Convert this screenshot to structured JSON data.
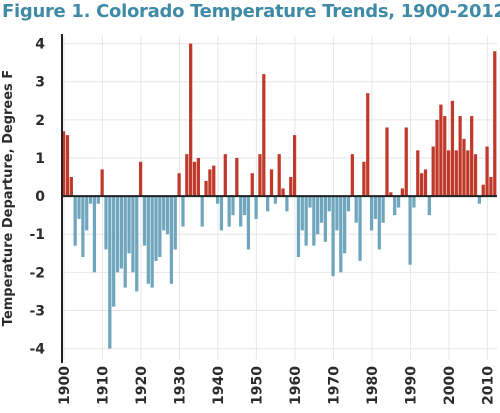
{
  "title": "Figure 1. Colorado Temperature Trends, 1900-2012",
  "colors": {
    "warm": "#c0392b",
    "cool": "#6fa6bd",
    "grid": "#e6e6e6",
    "axis": "#222222"
  },
  "chart_data": {
    "type": "bar",
    "title": "Figure 1. Colorado Temperature Trends, 1900-2012",
    "xlabel": "",
    "ylabel": "Temperature Departure, Degrees F",
    "ylim": [
      -4.3,
      4.2
    ],
    "yticks": [
      4,
      3,
      2,
      1,
      0,
      -1,
      -2,
      -3,
      -4
    ],
    "xticks": [
      1900,
      1910,
      1920,
      1930,
      1940,
      1950,
      1960,
      1970,
      1980,
      1990,
      2000,
      2010
    ],
    "grid": true,
    "x": [
      1900,
      1901,
      1902,
      1903,
      1904,
      1905,
      1906,
      1907,
      1908,
      1909,
      1910,
      1911,
      1912,
      1913,
      1914,
      1915,
      1916,
      1917,
      1918,
      1919,
      1920,
      1921,
      1922,
      1923,
      1924,
      1925,
      1926,
      1927,
      1928,
      1929,
      1930,
      1931,
      1932,
      1933,
      1934,
      1935,
      1936,
      1937,
      1938,
      1939,
      1940,
      1941,
      1942,
      1943,
      1944,
      1945,
      1946,
      1947,
      1948,
      1949,
      1950,
      1951,
      1952,
      1953,
      1954,
      1955,
      1956,
      1957,
      1958,
      1959,
      1960,
      1961,
      1962,
      1963,
      1964,
      1965,
      1966,
      1967,
      1968,
      1969,
      1970,
      1971,
      1972,
      1973,
      1974,
      1975,
      1976,
      1977,
      1978,
      1979,
      1980,
      1981,
      1982,
      1983,
      1984,
      1985,
      1986,
      1987,
      1988,
      1989,
      1990,
      1991,
      1992,
      1993,
      1994,
      1995,
      1996,
      1997,
      1998,
      1999,
      2000,
      2001,
      2002,
      2003,
      2004,
      2005,
      2006,
      2007,
      2008,
      2009,
      2010,
      2011,
      2012
    ],
    "values": [
      1.7,
      1.6,
      0.5,
      -1.3,
      -0.6,
      -1.6,
      -0.9,
      -0.2,
      -2.0,
      -0.2,
      0.7,
      -1.4,
      -4.0,
      -2.9,
      -2.0,
      -1.9,
      -2.4,
      -1.5,
      -2.0,
      -2.5,
      0.9,
      -1.3,
      -2.3,
      -2.4,
      -1.7,
      -1.6,
      -0.9,
      -1.0,
      -2.3,
      -1.4,
      0.6,
      -0.8,
      1.1,
      4.0,
      0.9,
      1.0,
      -0.8,
      0.4,
      0.7,
      0.8,
      -0.2,
      -0.9,
      1.1,
      -0.8,
      -0.5,
      1.0,
      -0.8,
      -0.5,
      -1.4,
      0.6,
      -0.6,
      1.1,
      3.2,
      -0.4,
      0.7,
      -0.2,
      1.1,
      0.2,
      -0.4,
      0.5,
      1.6,
      -1.6,
      -0.9,
      -1.3,
      -0.3,
      -1.3,
      -1.0,
      -0.7,
      -1.2,
      -0.4,
      -2.1,
      -0.9,
      -2.0,
      -1.5,
      -0.4,
      1.1,
      -0.7,
      -1.7,
      0.9,
      2.7,
      -0.9,
      -0.6,
      -1.4,
      -0.7,
      1.8,
      0.1,
      -0.5,
      -0.3,
      0.2,
      1.8,
      -1.8,
      -0.3,
      1.2,
      0.6,
      0.7,
      -0.5,
      1.3,
      2.0,
      2.4,
      2.1,
      1.2,
      2.5,
      1.2,
      2.1,
      1.5,
      1.2,
      2.1,
      1.1,
      -0.2,
      0.3,
      1.3,
      0.5,
      3.8
    ]
  }
}
